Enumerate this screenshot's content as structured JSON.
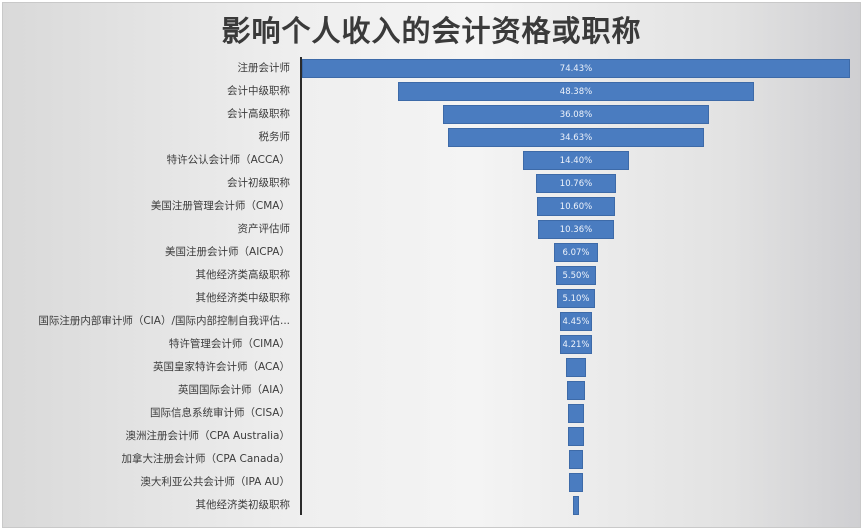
{
  "chart_data": {
    "type": "bar",
    "subtype": "funnel",
    "orientation": "horizontal",
    "title": "影响个人收入的会计资格或职称",
    "xlabel": "",
    "ylabel": "",
    "grid": false,
    "legend": null,
    "categories": [
      "注册会计师",
      "会计中级职称",
      "会计高级职称",
      "税务师",
      "特许公认会计师（ACCA）",
      "会计初级职称",
      "美国注册管理会计师（CMA）",
      "资产评估师",
      "美国注册会计师（AICPA）",
      "其他经济类高级职称",
      "其他经济类中级职称",
      "国际注册内部审计师（CIA）/国际内部控制自我评估...",
      "特许管理会计师（CIMA）",
      "英国皇家特许会计师（ACA）",
      "英国国际会计师（AIA）",
      "国际信息系统审计师（CISA）",
      "澳洲注册会计师（CPA Australia）",
      "加拿大注册会计师（CPA Canada）",
      "澳大利亚公共会计师（IPA AU）",
      "其他经济类初级职称"
    ],
    "values": [
      74.43,
      48.38,
      36.08,
      34.63,
      14.4,
      10.76,
      10.6,
      10.36,
      6.07,
      5.5,
      5.1,
      4.45,
      4.21,
      2.7,
      2.5,
      2.3,
      2.1,
      2.0,
      1.9,
      0.8
    ],
    "value_labels": [
      "74.43%",
      "48.38%",
      "36.08%",
      "34.63%",
      "14.40%",
      "10.76%",
      "10.60%",
      "10.36%",
      "6.07%",
      "5.50%",
      "5.10%",
      "4.45%",
      "4.21%",
      "",
      "",
      "",
      "",
      "",
      "",
      ""
    ],
    "unit": "%",
    "bar_color": "#4a7cc0"
  }
}
